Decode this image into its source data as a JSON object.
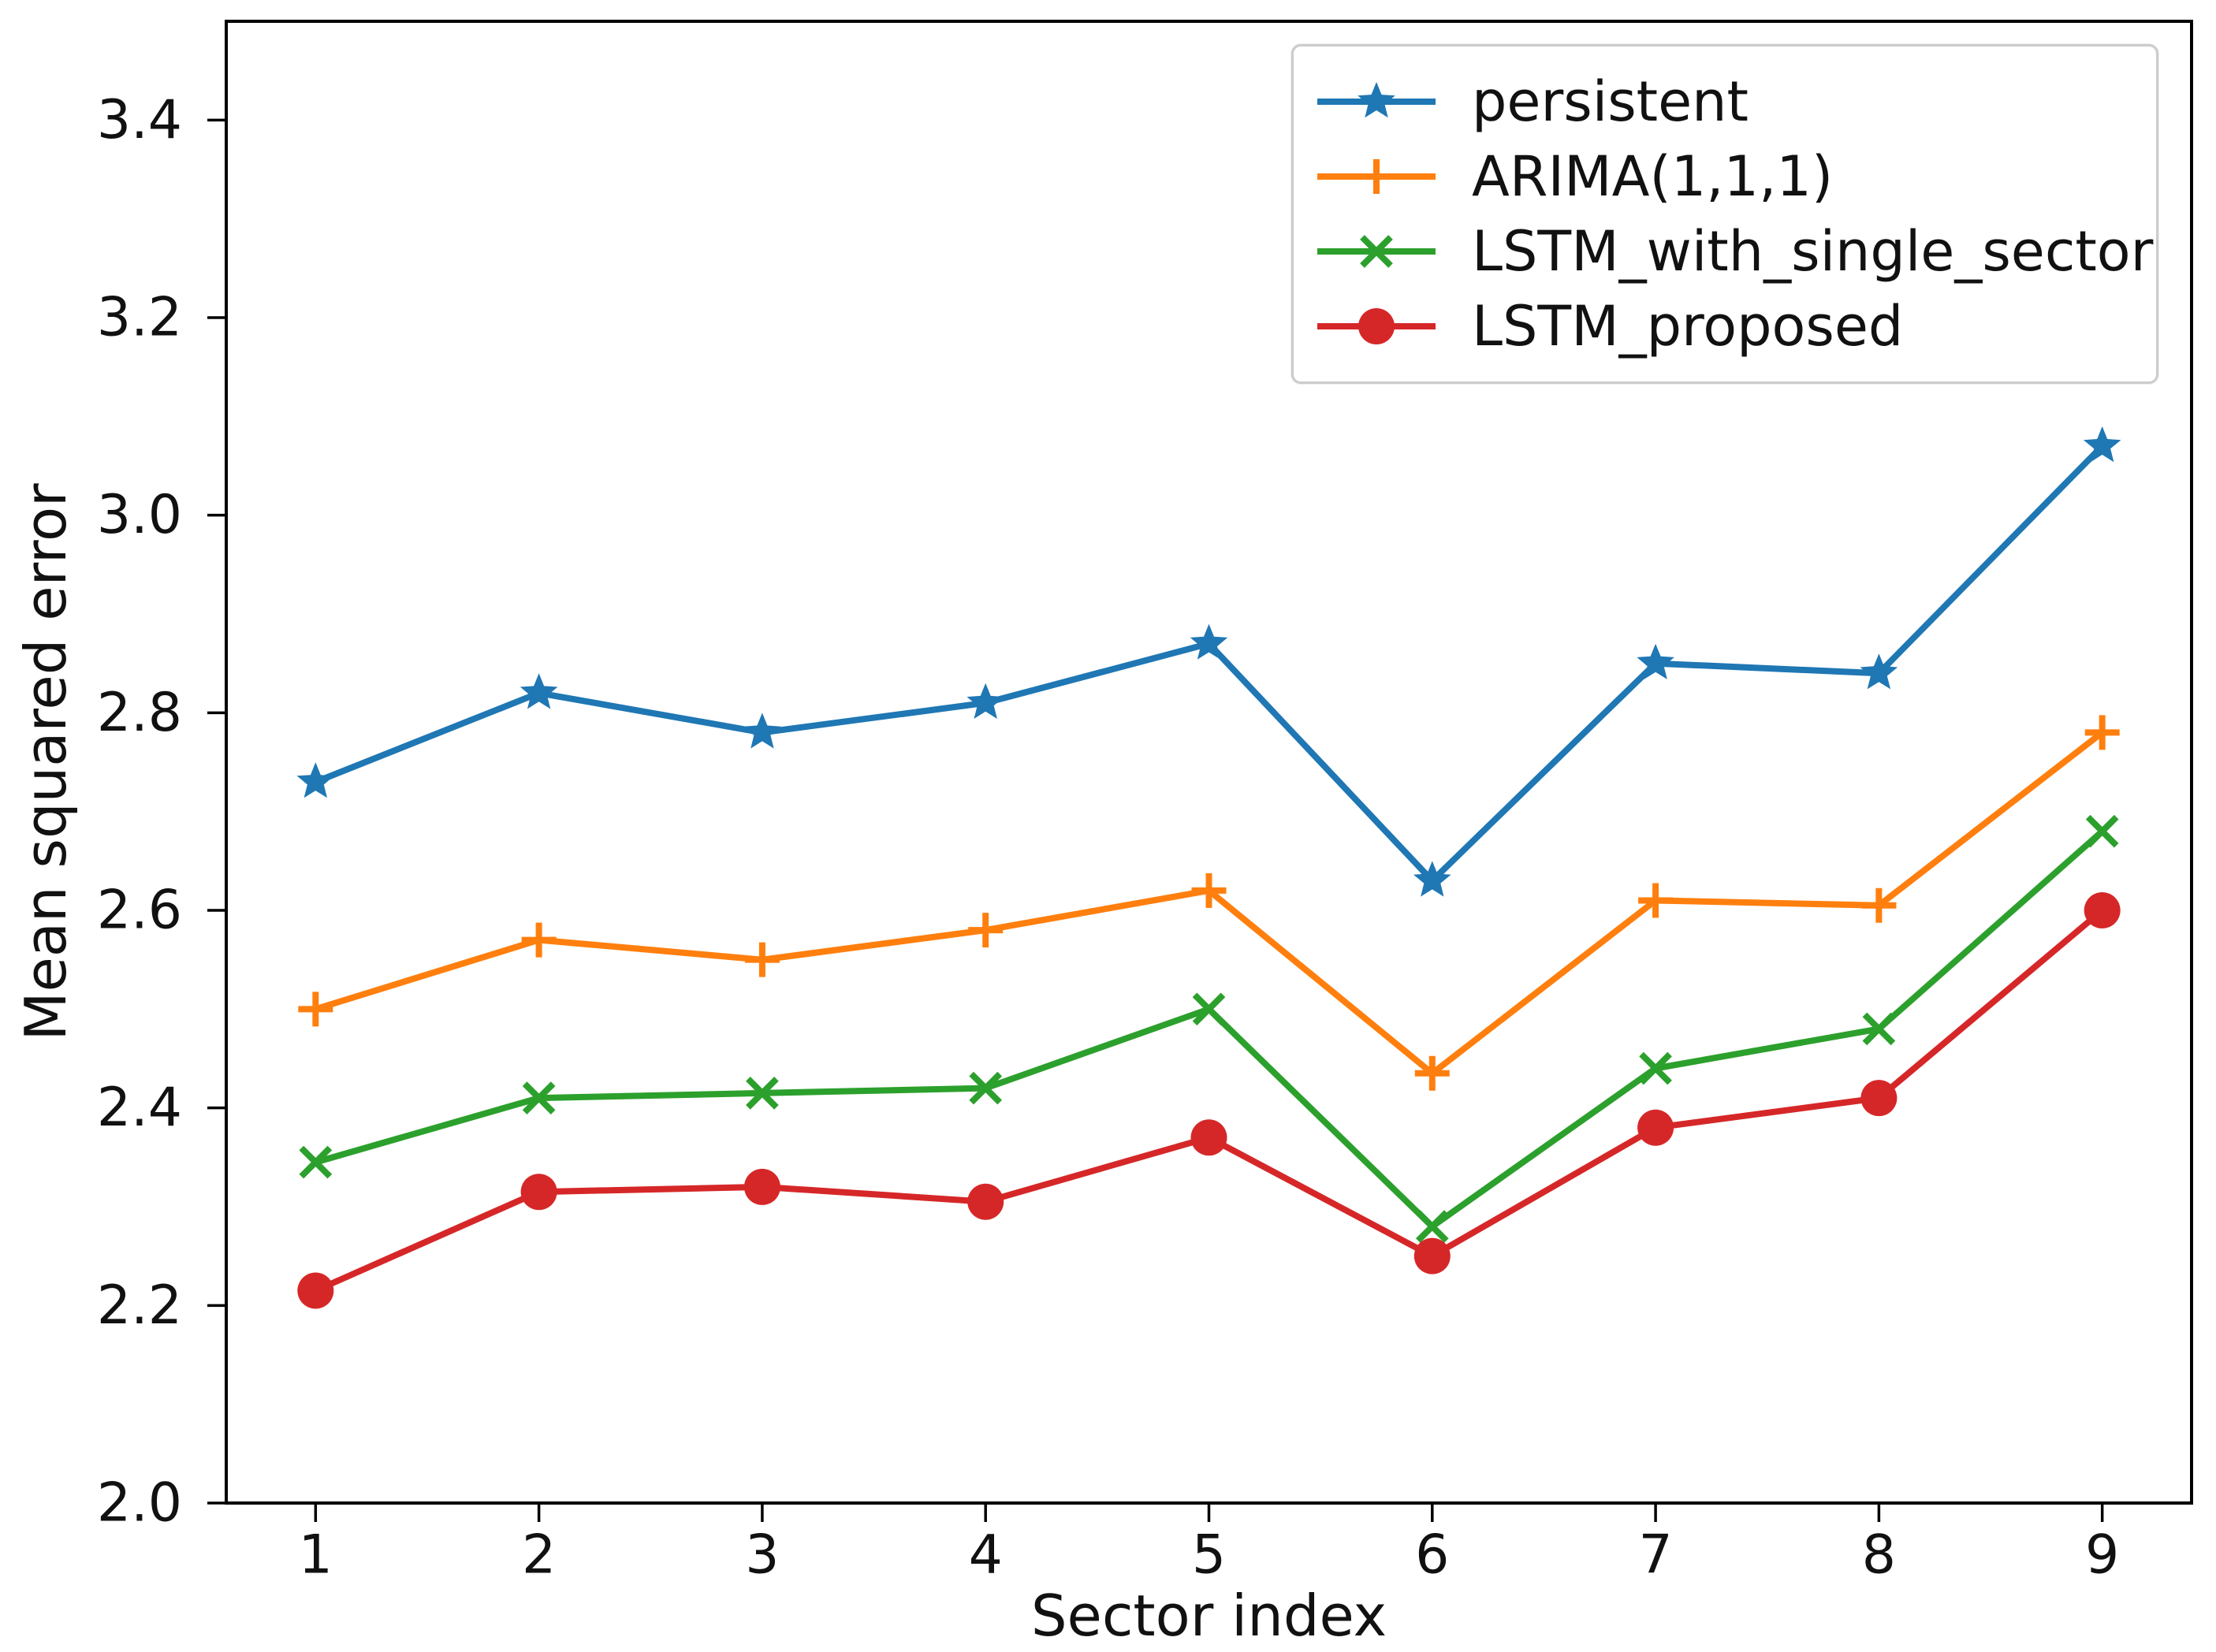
{
  "chart_data": {
    "type": "line",
    "title": "",
    "xlabel": "Sector index",
    "ylabel": "Mean squared error",
    "x": [
      1,
      2,
      3,
      4,
      5,
      6,
      7,
      8,
      9
    ],
    "xticks": [
      1,
      2,
      3,
      4,
      5,
      6,
      7,
      8,
      9
    ],
    "yticks": [
      2.0,
      2.2,
      2.4,
      2.6,
      2.8,
      3.0,
      3.2,
      3.4
    ],
    "xlim": [
      0.6,
      9.4
    ],
    "ylim": [
      2.0,
      3.5
    ],
    "grid": false,
    "legend_position": "top-right",
    "axis_color": "#000000",
    "text_color": "#111111",
    "series": [
      {
        "name": "persistent",
        "color": "#1f77b4",
        "marker": "star",
        "values": [
          2.73,
          2.82,
          2.78,
          2.81,
          2.87,
          2.63,
          2.85,
          2.84,
          3.07
        ]
      },
      {
        "name": "ARIMA(1,1,1)",
        "color": "#ff7f0e",
        "marker": "plus",
        "values": [
          2.5,
          2.57,
          2.55,
          2.58,
          2.62,
          2.435,
          2.61,
          2.605,
          2.78
        ]
      },
      {
        "name": "LSTM_with_single_sector",
        "color": "#2ca02c",
        "marker": "x",
        "values": [
          2.345,
          2.41,
          2.415,
          2.42,
          2.5,
          2.28,
          2.44,
          2.48,
          2.68
        ]
      },
      {
        "name": "LSTM_proposed",
        "color": "#d62728",
        "marker": "circle",
        "values": [
          2.215,
          2.315,
          2.32,
          2.305,
          2.37,
          2.25,
          2.38,
          2.41,
          2.6
        ]
      }
    ]
  }
}
